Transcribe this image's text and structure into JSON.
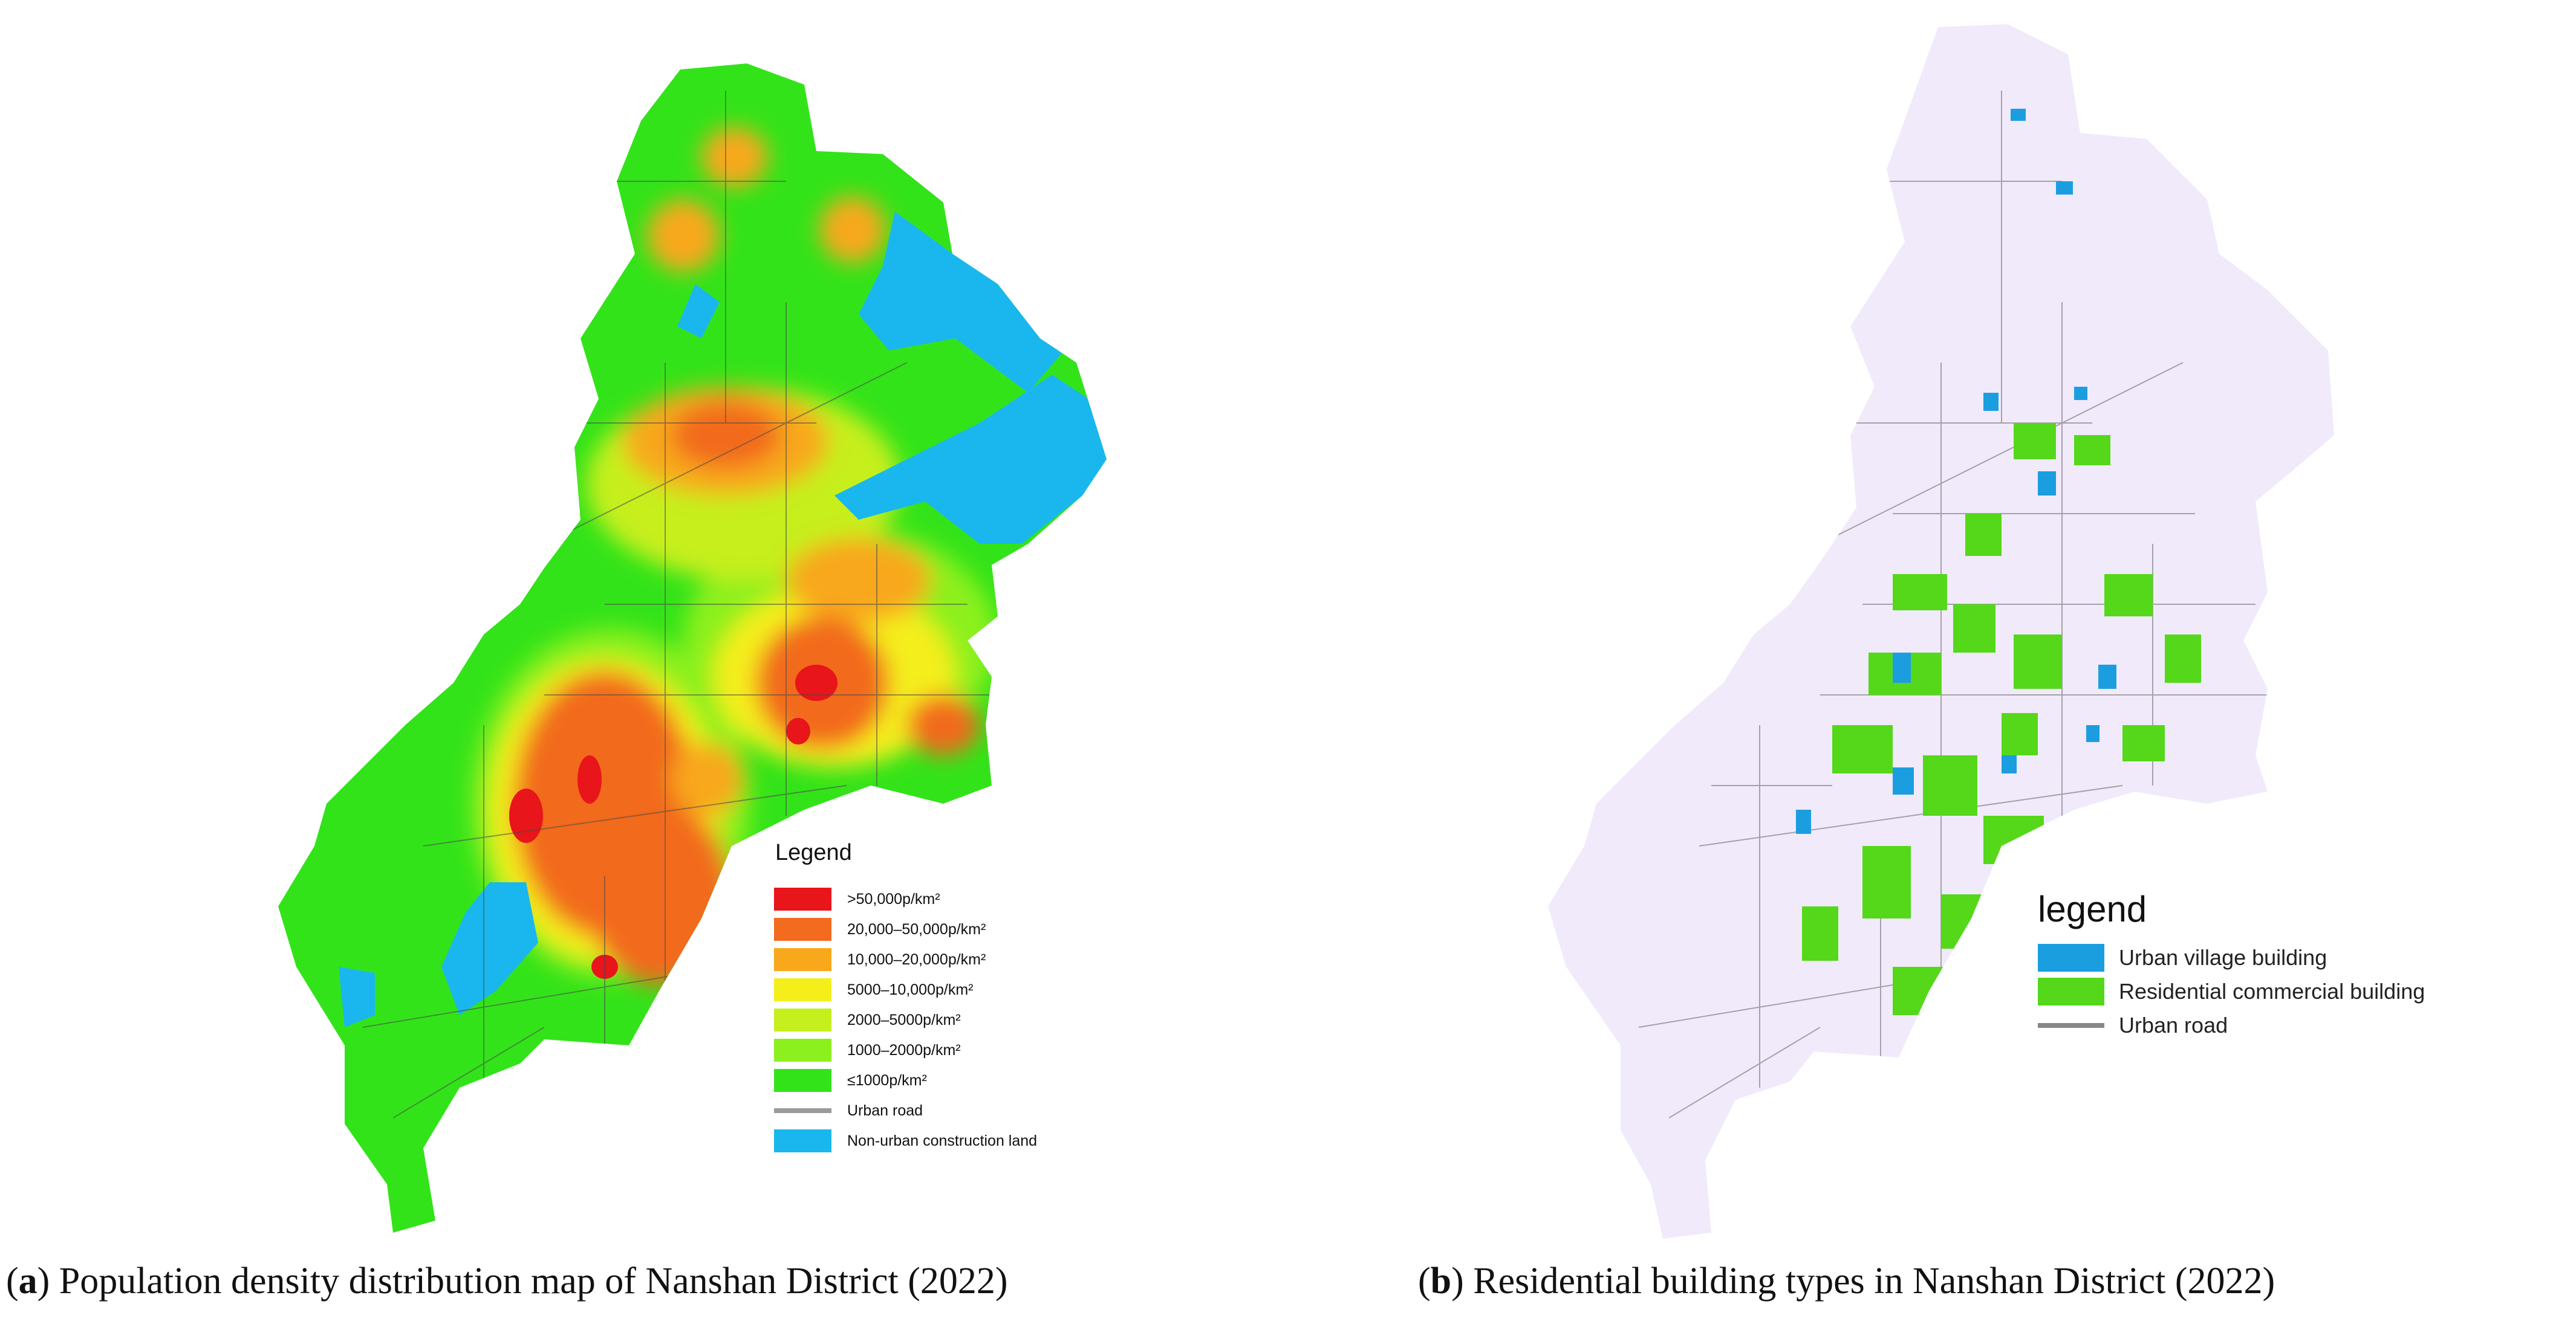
{
  "panel_a": {
    "legend_title": "Legend",
    "legend": [
      {
        "label": ">50,000p/km²",
        "color": "#e8151a"
      },
      {
        "label": "20,000–50,000p/km²",
        "color": "#f26b1f"
      },
      {
        "label": "10,000–20,000p/km²",
        "color": "#f8a81a"
      },
      {
        "label": "5000–10,000p/km²",
        "color": "#f4ee1b"
      },
      {
        "label": "2000–5000p/km²",
        "color": "#c6ef1e"
      },
      {
        "label": "1000–2000p/km²",
        "color": "#8cf01f"
      },
      {
        "label": "≤1000p/km²",
        "color": "#33e31a"
      },
      {
        "label": "Urban road",
        "color": "#9a9a9a",
        "kind": "line"
      },
      {
        "label": "Non-urban construction land",
        "color": "#1ab7ee"
      }
    ],
    "caption_letter": "a",
    "caption_text": ") Population density distribution map of Nanshan District (2022)"
  },
  "panel_b": {
    "legend_title": "legend",
    "legend": [
      {
        "label": "Urban village building",
        "color": "#1b9ee0"
      },
      {
        "label": "Residential commercial building",
        "color": "#55d81a"
      },
      {
        "label": "Urban road",
        "color": "#888888",
        "kind": "line"
      }
    ],
    "caption_letter": "b",
    "caption_text": ") Residential building types in Nanshan District (2022)"
  },
  "colors": {
    "base_land_a": "#33e31a",
    "base_land_b": "#f1eafa",
    "road": "#4a4a4a"
  }
}
